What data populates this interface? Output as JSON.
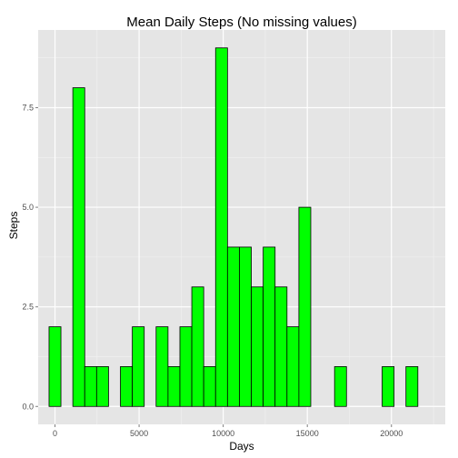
{
  "chart_data": {
    "type": "bar",
    "title": "Mean Daily Steps (No missing values)",
    "xlabel": "Days",
    "ylabel": "Steps",
    "bin_width": 707.2,
    "bin_starts": [
      -353.6,
      353.6,
      1060.8,
      1768.0,
      2475.2,
      3182.4,
      3889.6,
      4596.8,
      5304.0,
      6011.2,
      6718.4,
      7425.6,
      8132.8,
      8840.0,
      9547.2,
      10254.4,
      10961.6,
      11668.8,
      12376.0,
      13083.2,
      13790.4,
      14497.6,
      15204.8,
      15912.0,
      16619.2,
      17326.4,
      18033.6,
      18740.8,
      19448.0,
      20155.2,
      20862.4,
      21569.6
    ],
    "values": [
      2,
      0,
      8,
      1,
      1,
      0,
      1,
      2,
      0,
      2,
      1,
      2,
      3,
      1,
      9,
      4,
      4,
      3,
      4,
      3,
      2,
      5,
      0,
      0,
      1,
      0,
      0,
      0,
      1,
      0,
      1,
      0
    ],
    "xlim": [
      -1000,
      23200
    ],
    "ylim": [
      -0.45,
      9.45
    ],
    "x_ticks": [
      0,
      5000,
      10000,
      15000,
      20000
    ],
    "x_tick_labels": [
      "0",
      "5000",
      "10000",
      "15000",
      "20000"
    ],
    "y_ticks": [
      0,
      2.5,
      5,
      7.5
    ],
    "y_tick_labels": [
      "0.0",
      "2.5",
      "5.0",
      "7.5"
    ],
    "grid": true,
    "colors": {
      "bar_fill": "#00ff00",
      "bar_stroke": "#000000",
      "panel_bg": "#e5e5e5",
      "grid_major": "#ffffff",
      "grid_minor": "#f2f2f2"
    }
  }
}
